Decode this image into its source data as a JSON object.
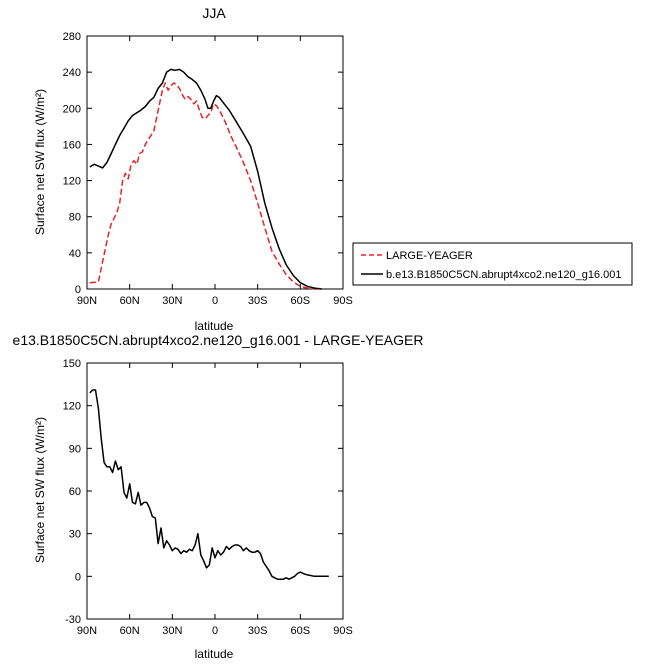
{
  "chart_data": [
    {
      "type": "line",
      "title": "JJA",
      "xlabel": "latitude",
      "ylabel": "Surface net SW flux (W/m²)",
      "xlim": [
        90,
        -90
      ],
      "ylim": [
        0,
        280
      ],
      "xticks": [
        90,
        60,
        30,
        0,
        -30,
        -60,
        -90
      ],
      "xtick_labels": [
        "90N",
        "60N",
        "30N",
        "0",
        "30S",
        "60S",
        "90S"
      ],
      "yticks": [
        0,
        40,
        80,
        120,
        160,
        200,
        240,
        280
      ],
      "ytick_labels": [
        "0",
        "40",
        "80",
        "120",
        "160",
        "200",
        "240",
        "280"
      ],
      "legend_position": "right",
      "series": [
        {
          "name": "LARGE-YEAGER",
          "color": "#e8222a",
          "dash": "dashed",
          "x": [
            88,
            82,
            78,
            75,
            73,
            71,
            69,
            67,
            65,
            63,
            61,
            59,
            57,
            55,
            53,
            51,
            49,
            47,
            45,
            43,
            41,
            39,
            37,
            35,
            33,
            31,
            29,
            27,
            25,
            23,
            21,
            19,
            17,
            15,
            13,
            11,
            9,
            7,
            5,
            3,
            1,
            -1,
            -3,
            -5,
            -8,
            -11,
            -15,
            -20,
            -25,
            -30,
            -35,
            -40,
            -45,
            -50,
            -55,
            -60,
            -65,
            -70,
            -75
          ],
          "y": [
            7,
            8,
            38,
            60,
            72,
            78,
            85,
            95,
            120,
            128,
            122,
            138,
            142,
            138,
            150,
            152,
            160,
            165,
            170,
            175,
            190,
            205,
            220,
            228,
            220,
            225,
            228,
            226,
            222,
            215,
            210,
            213,
            210,
            205,
            208,
            198,
            190,
            188,
            192,
            195,
            205,
            203,
            198,
            192,
            182,
            170,
            157,
            140,
            120,
            95,
            68,
            42,
            28,
            16,
            8,
            3,
            1,
            0,
            0
          ]
        },
        {
          "name": "b.e13.B1850C5CN.abrupt4xco2.ne120_g16.001",
          "color": "#000000",
          "dash": "solid",
          "x": [
            88,
            85,
            82,
            79,
            76,
            73,
            70,
            67,
            64,
            61,
            58,
            55,
            52,
            49,
            46,
            43,
            40,
            37,
            34,
            31,
            28,
            25,
            22,
            19,
            16,
            13,
            10,
            7,
            5,
            3,
            1,
            -1,
            -3,
            -6,
            -10,
            -15,
            -20,
            -25,
            -30,
            -35,
            -40,
            -45,
            -50,
            -55,
            -60,
            -65,
            -70,
            -75
          ],
          "y": [
            135,
            138,
            136,
            134,
            140,
            150,
            160,
            170,
            178,
            186,
            192,
            195,
            198,
            202,
            208,
            212,
            222,
            228,
            240,
            243,
            242,
            243,
            240,
            235,
            232,
            228,
            220,
            210,
            200,
            200,
            208,
            214,
            212,
            206,
            198,
            185,
            172,
            158,
            130,
            95,
            68,
            45,
            27,
            15,
            7,
            3,
            1,
            0
          ]
        }
      ]
    },
    {
      "type": "line",
      "title": "e13.B1850C5CN.abrupt4xco2.ne120_g16.001 - LARGE-YEAGER",
      "xlabel": "latitude",
      "ylabel": "Surface net SW flux (W/m²)",
      "xlim": [
        90,
        -90
      ],
      "ylim": [
        -30,
        150
      ],
      "xticks": [
        90,
        60,
        30,
        0,
        -30,
        -60,
        -90
      ],
      "xtick_labels": [
        "90N",
        "60N",
        "30N",
        "0",
        "30S",
        "60S",
        "90S"
      ],
      "yticks": [
        -30,
        0,
        30,
        60,
        90,
        120,
        150
      ],
      "ytick_labels": [
        "-30",
        "0",
        "30",
        "60",
        "90",
        "120",
        "150"
      ],
      "series": [
        {
          "color": "#000000",
          "dash": "solid",
          "x": [
            88,
            86,
            84,
            82,
            80,
            78,
            76,
            74,
            72,
            70,
            68,
            66,
            64,
            62,
            60,
            58,
            56,
            54,
            52,
            50,
            48,
            46,
            44,
            42,
            40,
            38,
            36,
            34,
            32,
            30,
            28,
            26,
            24,
            22,
            20,
            18,
            16,
            14,
            12,
            10,
            8,
            6,
            4,
            2,
            0,
            -2,
            -4,
            -6,
            -8,
            -10,
            -12,
            -14,
            -16,
            -18,
            -20,
            -22,
            -24,
            -26,
            -28,
            -30,
            -32,
            -34,
            -36,
            -38,
            -40,
            -42,
            -44,
            -46,
            -48,
            -50,
            -52,
            -54,
            -56,
            -58,
            -60,
            -62,
            -65,
            -70,
            -75,
            -80
          ],
          "y": [
            129,
            131,
            131,
            118,
            97,
            80,
            77,
            77,
            73,
            81,
            75,
            77,
            59,
            55,
            65,
            52,
            51,
            59,
            50,
            52,
            52,
            48,
            42,
            41,
            23,
            34,
            20,
            25,
            22,
            18,
            20,
            19,
            16,
            18,
            17,
            19,
            18,
            22,
            30,
            15,
            11,
            6,
            8,
            20,
            13,
            18,
            15,
            17,
            21,
            19,
            21,
            22,
            22,
            21,
            18,
            20,
            18,
            17,
            17,
            18,
            16,
            10,
            7,
            4,
            0,
            -1,
            -2,
            -2,
            -2,
            -1,
            -2,
            -1,
            0,
            2,
            3,
            2,
            1,
            0,
            0,
            0
          ]
        }
      ]
    }
  ]
}
